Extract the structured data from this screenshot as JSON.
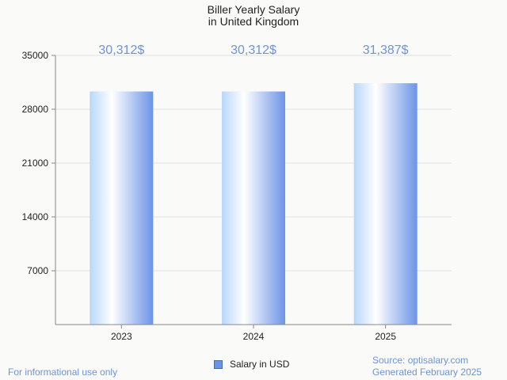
{
  "chart_data": {
    "type": "bar",
    "title": "Biller Yearly Salary",
    "subtitle": "in United Kingdom",
    "categories": [
      "2023",
      "2024",
      "2025"
    ],
    "series": [
      {
        "name": "Salary in USD",
        "values": [
          30312,
          30312,
          31387
        ],
        "labels": [
          "30,312$",
          "30,312$",
          "31,387$"
        ]
      }
    ],
    "ylim": [
      0,
      35000
    ],
    "yticks": [
      7000,
      14000,
      21000,
      28000,
      35000
    ],
    "grid": true,
    "legend_position": "bottom-center",
    "xlabel": "",
    "ylabel": ""
  },
  "footer": {
    "disclaimer": "For informational use only",
    "source": "Source: optisalary.com",
    "generated": "Generated February 2025"
  },
  "colors": {
    "label": "#6e93d6",
    "bar_light": "#ffffff",
    "bar_mid": "#b8d7fb",
    "bar_dark": "#6c94e6",
    "axis": "#888888",
    "grid": "#e0e0e0",
    "legend_swatch": "#6c94e6"
  }
}
